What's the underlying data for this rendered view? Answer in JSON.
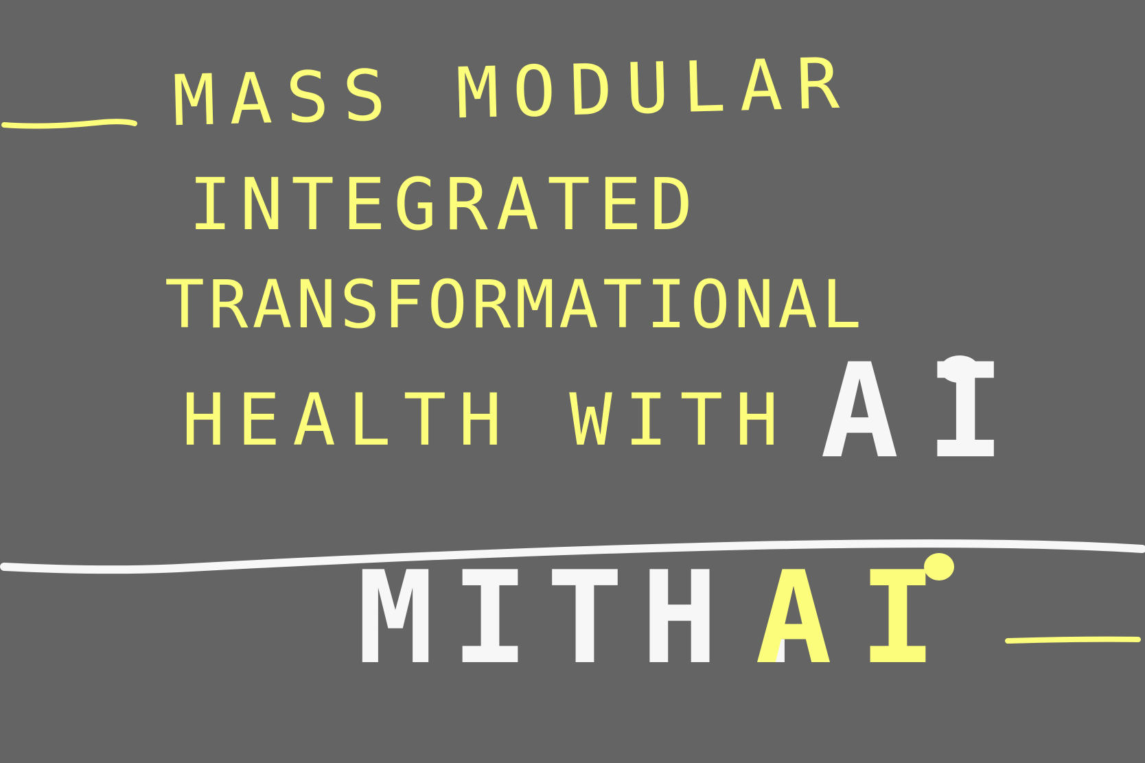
{
  "tagline": {
    "line1": "Mass Modular",
    "line2": "Integrated",
    "line3": "Transformational",
    "line4": "Health with",
    "line4_emphasis": "Ai"
  },
  "brand": {
    "name": "mith.",
    "suffix": "Ai"
  },
  "colors": {
    "background": "#646464",
    "accent_yellow": "#fdfd7c",
    "accent_white": "#f7f7f7"
  }
}
